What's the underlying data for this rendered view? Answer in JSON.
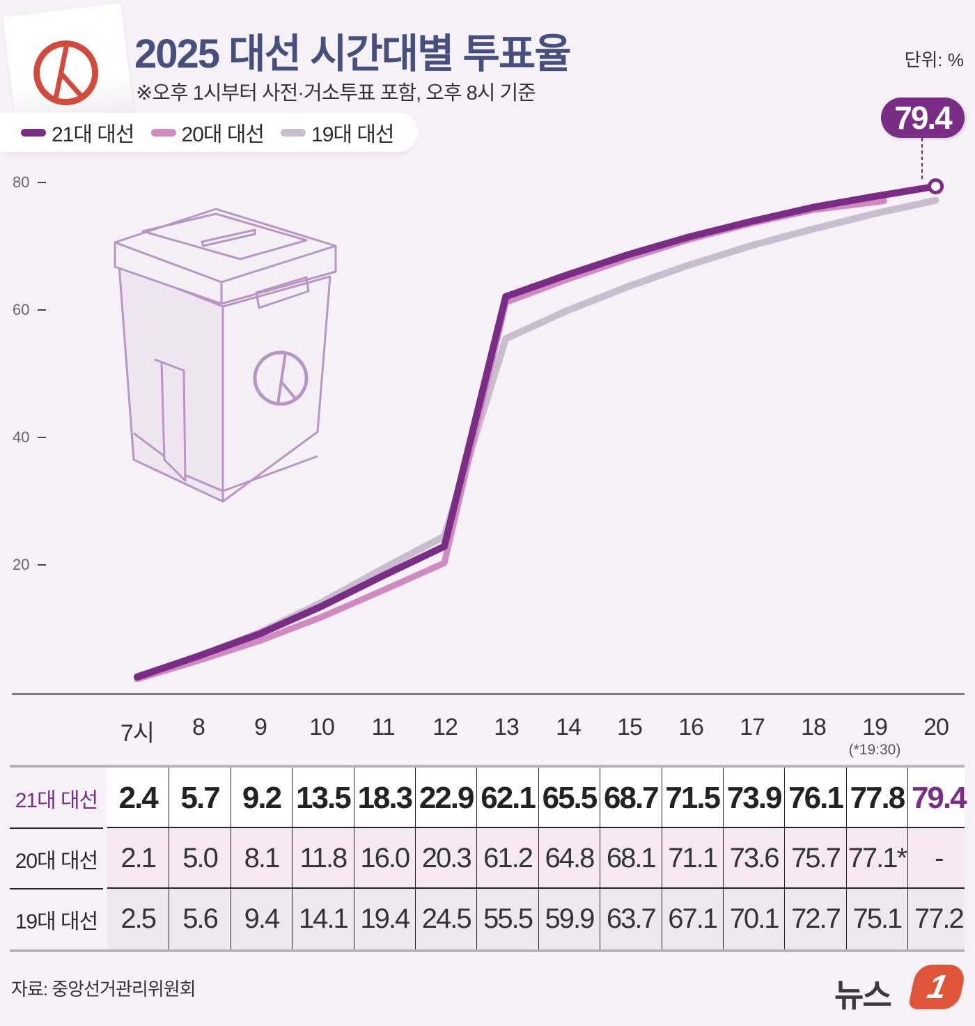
{
  "header": {
    "title": "2025 대선 시간대별 투표율",
    "subtitle": "※오후 1시부터 사전·거소투표 포함, 오후 8시 기준",
    "unit": "단위: %"
  },
  "logo_icon": "ballot-stamp-icon",
  "legend": [
    {
      "label": "21대 대선",
      "color": "#7a2d85"
    },
    {
      "label": "20대 대선",
      "color": "#d08ac0"
    },
    {
      "label": "19대 대선",
      "color": "#c8bccf"
    }
  ],
  "callout": {
    "value": "79.4"
  },
  "yaxis": {
    "ticks": [
      "80",
      "60",
      "40",
      "20"
    ]
  },
  "xaxis": {
    "labels": [
      "7시",
      "8",
      "9",
      "10",
      "11",
      "12",
      "13",
      "14",
      "15",
      "16",
      "17",
      "18",
      "19",
      "20"
    ],
    "note": "(*19:30)"
  },
  "table": {
    "rows": [
      {
        "label": "21대 대선",
        "values": [
          "2.4",
          "5.7",
          "9.2",
          "13.5",
          "18.3",
          "22.9",
          "62.1",
          "65.5",
          "68.7",
          "71.5",
          "73.9",
          "76.1",
          "77.8",
          "79.4"
        ]
      },
      {
        "label": "20대 대선",
        "values": [
          "2.1",
          "5.0",
          "8.1",
          "11.8",
          "16.0",
          "20.3",
          "61.2",
          "64.8",
          "68.1",
          "71.1",
          "73.6",
          "75.7",
          "77.1*",
          "-"
        ]
      },
      {
        "label": "19대 대선",
        "values": [
          "2.5",
          "5.6",
          "9.4",
          "14.1",
          "19.4",
          "24.5",
          "55.5",
          "59.9",
          "63.7",
          "67.1",
          "70.1",
          "72.7",
          "75.1",
          "77.2"
        ]
      }
    ]
  },
  "footer": {
    "source": "자료: 중앙선거관리위원회",
    "brand_text": "뉴스",
    "brand_badge": "1"
  },
  "colors": {
    "title": "#47507d",
    "series21": "#7a2d85",
    "series20": "#d08ac0",
    "series19": "#c8bccf",
    "background": "#f6f1f7",
    "brand": "#e0553a"
  },
  "chart_data": {
    "type": "line",
    "title": "2025 대선 시간대별 투표율",
    "subtitle": "※오후 1시부터 사전·거소투표 포함, 오후 8시 기준",
    "xlabel": "",
    "ylabel": "단위: %",
    "categories": [
      "7시",
      "8",
      "9",
      "10",
      "11",
      "12",
      "13",
      "14",
      "15",
      "16",
      "17",
      "18",
      "19",
      "20"
    ],
    "ylim": [
      0,
      80
    ],
    "yticks": [
      20,
      40,
      60,
      80
    ],
    "grid": false,
    "legend_position": "top-left",
    "series": [
      {
        "name": "21대 대선",
        "values": [
          2.4,
          5.7,
          9.2,
          13.5,
          18.3,
          22.9,
          62.1,
          65.5,
          68.7,
          71.5,
          73.9,
          76.1,
          77.8,
          79.4
        ]
      },
      {
        "name": "20대 대선",
        "values": [
          2.1,
          5.0,
          8.1,
          11.8,
          16.0,
          20.3,
          61.2,
          64.8,
          68.1,
          71.1,
          73.6,
          75.7,
          77.1,
          null
        ]
      },
      {
        "name": "19대 대선",
        "values": [
          2.5,
          5.6,
          9.4,
          14.1,
          19.4,
          24.5,
          55.5,
          59.9,
          63.7,
          67.1,
          70.1,
          72.7,
          75.1,
          77.2
        ]
      }
    ],
    "annotations": [
      {
        "text": "79.4",
        "x": "20",
        "series": "21대 대선"
      },
      {
        "text": "(*19:30)",
        "x": "19",
        "note": "20대 대선 19시 값은 19:30 기준"
      }
    ]
  }
}
